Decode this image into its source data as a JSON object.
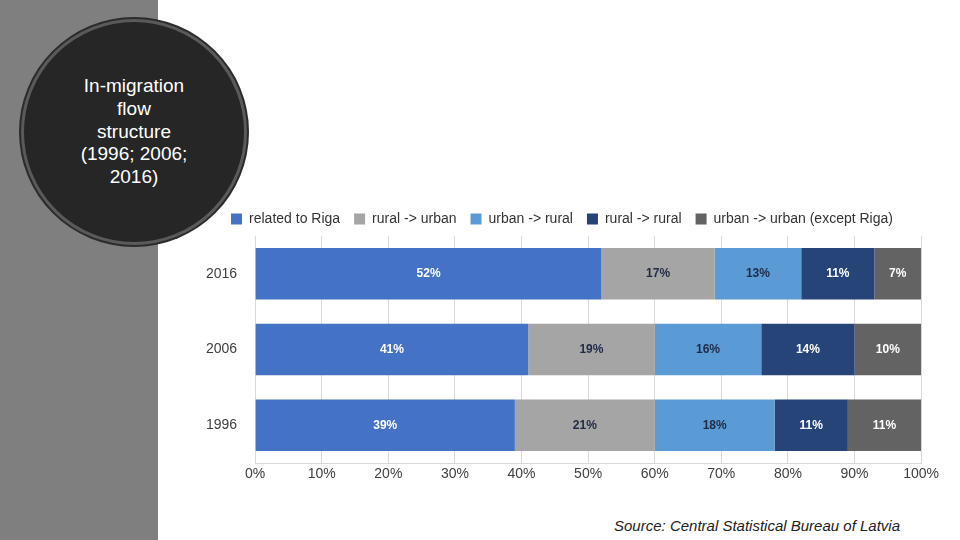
{
  "chart_data": {
    "type": "bar",
    "title": "In-migration flow structure (1996; 2006; 2016)",
    "source": "Source: Central Statistical Bureau of Latvia",
    "orientation": "horizontal",
    "stacked": true,
    "data_labels": true,
    "grid": true,
    "legend": "top",
    "categories": [
      "2016",
      "2006",
      "1996"
    ],
    "series": [
      {
        "name": "related to Riga",
        "color": "#4472c4",
        "values": [
          52,
          41,
          39
        ],
        "value_labels": [
          "52%",
          "41%",
          "39%"
        ]
      },
      {
        "name": "rural -> urban",
        "color": "#a5a5a5",
        "values": [
          17,
          19,
          21
        ],
        "value_labels": [
          "17%",
          "19%",
          "21%"
        ]
      },
      {
        "name": "urban -> rural",
        "color": "#5b9bd5",
        "values": [
          13,
          16,
          18
        ],
        "value_labels": [
          "13%",
          "16%",
          "18%"
        ]
      },
      {
        "name": "rural -> rural",
        "color": "#264478",
        "values": [
          11,
          14,
          11
        ],
        "value_labels": [
          "11%",
          "14%",
          "11%"
        ]
      },
      {
        "name": "urban -> urban (except Riga)",
        "color": "#636363",
        "values": [
          7,
          10,
          11
        ],
        "value_labels": [
          "7%",
          "10%",
          "11%"
        ]
      }
    ],
    "xlim": [
      0,
      100
    ],
    "xticks": [
      {
        "value": 0,
        "label": "0%"
      },
      {
        "value": 10,
        "label": "10%"
      },
      {
        "value": 20,
        "label": "20%"
      },
      {
        "value": 30,
        "label": "30%"
      },
      {
        "value": 40,
        "label": "40%"
      },
      {
        "value": 50,
        "label": "50%"
      },
      {
        "value": 60,
        "label": "60%"
      },
      {
        "value": 70,
        "label": "70%"
      },
      {
        "value": 80,
        "label": "80%"
      },
      {
        "value": 90,
        "label": "90%"
      },
      {
        "value": 100,
        "label": "100%"
      }
    ]
  }
}
